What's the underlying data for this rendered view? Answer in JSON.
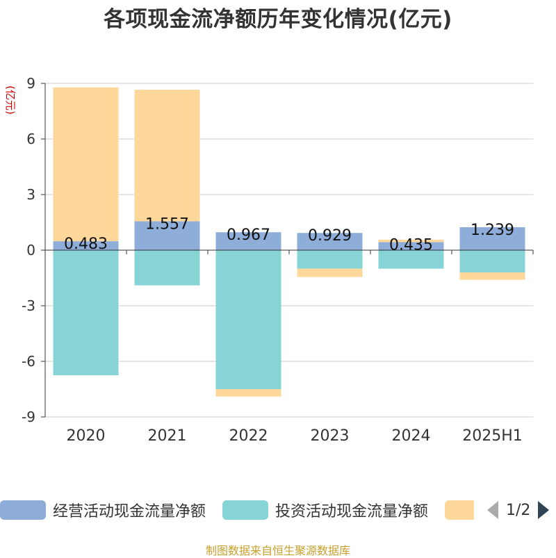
{
  "title": "各项现金流净额历年变化情况(亿元)",
  "source": "制图数据来自恒生聚源数据库",
  "colors": {
    "operating": "#8eadd9",
    "investing": "#86d4d6",
    "financing": "#fdd89a",
    "grid": "#cccccc",
    "axis": "#333333",
    "ylabel": "#cc0000",
    "pager_active": "#2f4554",
    "pager_inactive": "#aaaaaa"
  },
  "legend": {
    "pager_text": "1/2",
    "prev_icon": "triangle-left-icon",
    "next_icon": "triangle-right-icon"
  },
  "chart_data": {
    "type": "bar",
    "stacked": true,
    "categories": [
      "2020",
      "2021",
      "2022",
      "2023",
      "2024",
      "2025H1"
    ],
    "ylabel": "(亿元)",
    "ylim": [
      -9,
      9
    ],
    "yticks": [
      -9,
      -6,
      -3,
      0,
      3,
      6,
      9
    ],
    "grid": true,
    "legend_position": "bottom",
    "series": [
      {
        "name": "经营活动现金流量净额",
        "key": "operating",
        "values": [
          0.483,
          1.557,
          0.967,
          0.929,
          0.435,
          1.239
        ],
        "labels": [
          "0.483",
          "1.557",
          "0.967",
          "0.929",
          "0.435",
          "1.239"
        ]
      },
      {
        "name": "投资活动现金流量净额",
        "key": "investing",
        "values": [
          -6.75,
          -1.9,
          -7.5,
          -1.0,
          -1.0,
          -1.2
        ]
      },
      {
        "name": "",
        "key": "financing",
        "values": [
          8.3,
          7.1,
          -0.4,
          -0.45,
          0.13,
          -0.4
        ]
      }
    ]
  }
}
